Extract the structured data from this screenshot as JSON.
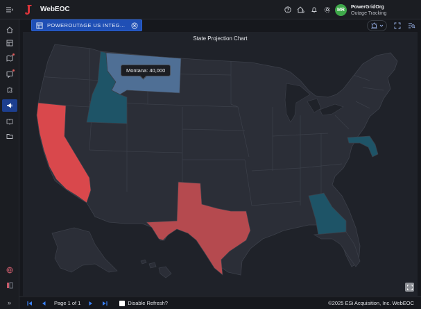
{
  "app": {
    "brand": "WebEOC"
  },
  "user": {
    "initials": "MR",
    "org": "PowerGridOrg",
    "role": "Outage Tracking",
    "avatar_color": "#3ea84a"
  },
  "topbar": {
    "icons": [
      "help-icon",
      "home-alert-icon",
      "bell-icon",
      "gear-icon"
    ]
  },
  "sidebar": {
    "items": [
      "home-icon",
      "board-icon",
      "map-icon",
      "chat-icon",
      "puzzle-icon",
      "megaphone-icon",
      "book-icon",
      "folder-icon",
      "globe-icon",
      "panel-icon"
    ],
    "active_index": 5
  },
  "tab": {
    "label": "POWEROUTAGE US INTEG..."
  },
  "chart": {
    "title": "State Projection Chart"
  },
  "chart_data": {
    "type": "choropleth",
    "title": "State Projection Chart",
    "highlighted_states": [
      {
        "state": "California",
        "level": "high",
        "color": "#d9484c"
      },
      {
        "state": "Texas",
        "level": "high",
        "color": "#b54a4f"
      },
      {
        "state": "Montana",
        "level": "medium",
        "color": "#4f6f95",
        "value": 40000
      },
      {
        "state": "Idaho",
        "level": "low",
        "color": "#1e5467"
      },
      {
        "state": "Georgia",
        "level": "low",
        "color": "#1e5467"
      },
      {
        "state": "Maryland",
        "level": "low",
        "color": "#1e5467"
      }
    ],
    "tooltip": "Montana: 40,000"
  },
  "pagination": {
    "label": "Page 1 of 1"
  },
  "refresh": {
    "label": "Disable Refresh?"
  },
  "footer": {
    "copyright": "©2025 ESi Acquisition, Inc. WebEOC"
  }
}
